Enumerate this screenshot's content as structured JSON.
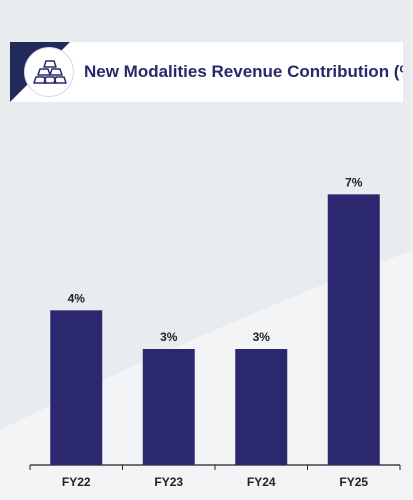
{
  "header": {
    "title": "New Modalities Revenue Contribution (%)",
    "icon": "gold-bars-icon"
  },
  "colors": {
    "bar": "#2b2870",
    "accent": "#232a5c",
    "background": "#e9ecee"
  },
  "chart_data": {
    "type": "bar",
    "title": "New Modalities Revenue Contribution (%)",
    "categories": [
      "FY22",
      "FY23",
      "FY24",
      "FY25"
    ],
    "values": [
      4,
      3,
      3,
      7
    ],
    "labels": [
      "4%",
      "3%",
      "3%",
      "7%"
    ],
    "xlabel": "",
    "ylabel": "",
    "ylim": [
      0,
      7.5
    ],
    "grid": false,
    "legend": "none"
  }
}
